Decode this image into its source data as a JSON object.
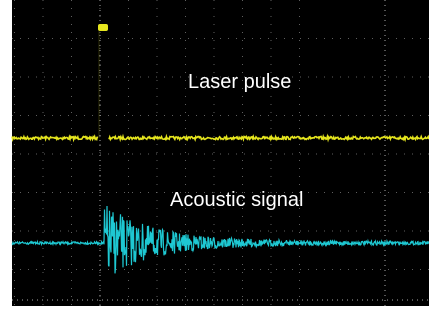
{
  "labels": {
    "laser": "Laser pulse",
    "acoustic": "Acoustic signal"
  }
}
